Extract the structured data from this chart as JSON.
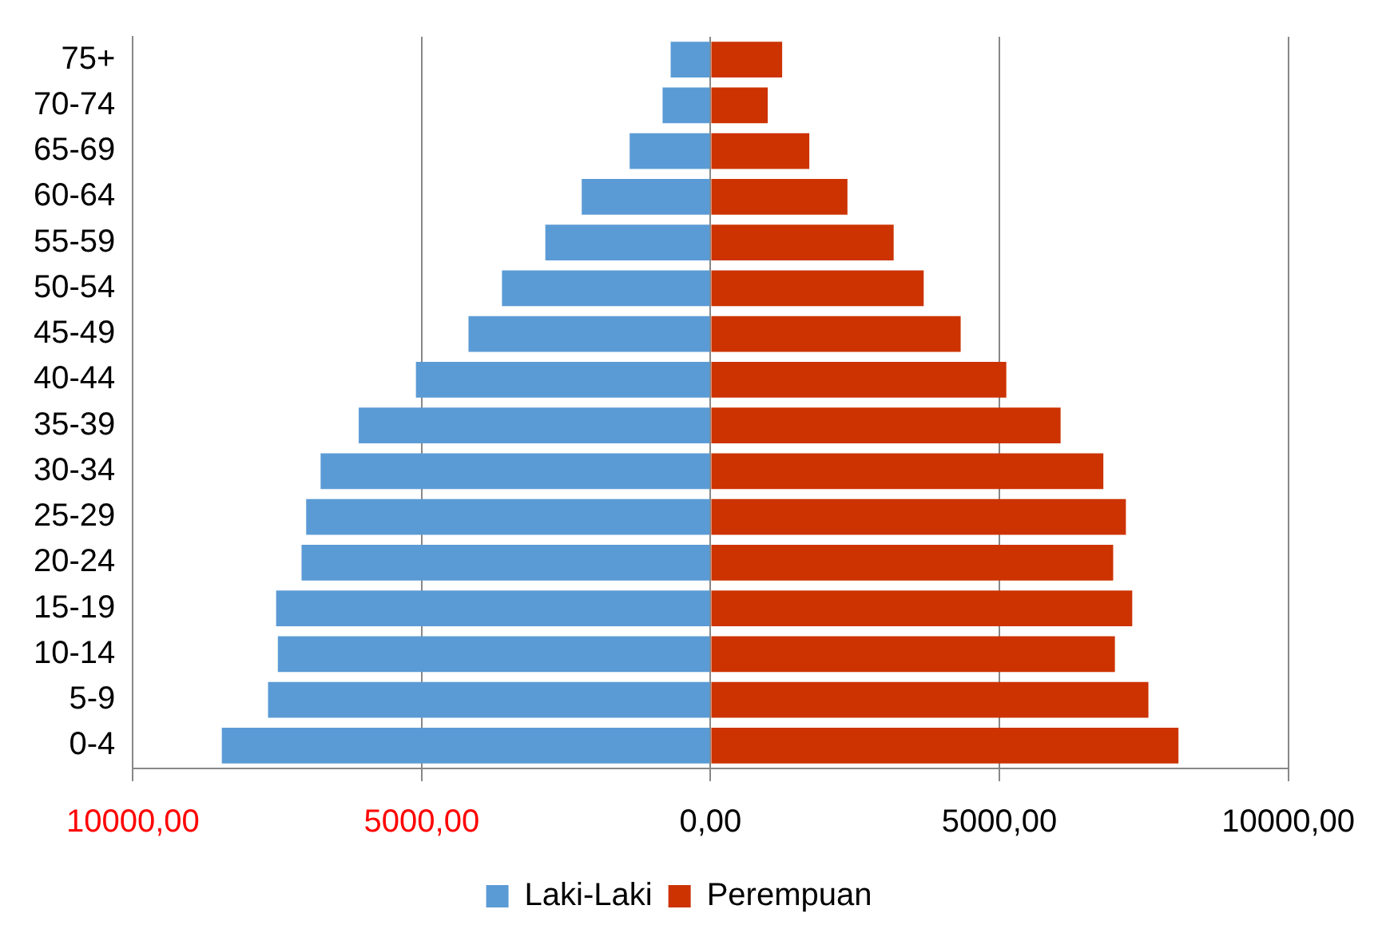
{
  "chart_data": {
    "type": "bar",
    "orientation": "horizontal",
    "stacked": true,
    "categories": [
      "75+",
      "70-74",
      "65-69",
      "60-64",
      "55-59",
      "50-54",
      "45-49",
      "40-44",
      "35-39",
      "30-34",
      "25-29",
      "20-24",
      "15-19",
      "10-14",
      "5-9",
      "0-4"
    ],
    "series": [
      {
        "name": "Laki-Laki",
        "color": "#5b9bd5",
        "values": [
          -690,
          -830,
          -1400,
          -2230,
          -2860,
          -3610,
          -4190,
          -5100,
          -6090,
          -6750,
          -7000,
          -7080,
          -7520,
          -7490,
          -7660,
          -8460
        ]
      },
      {
        "name": "Perempuan",
        "color": "#cc3300",
        "values": [
          1240,
          990,
          1710,
          2370,
          3170,
          3690,
          4330,
          5120,
          6060,
          6800,
          7190,
          6970,
          7300,
          7000,
          7580,
          8100
        ]
      }
    ],
    "xlim": [
      -10000,
      10000
    ],
    "xticks": [
      {
        "value": -10000,
        "label": "10000,00"
      },
      {
        "value": -5000,
        "label": "5000,00"
      },
      {
        "value": 0,
        "label": "0,00"
      },
      {
        "value": 5000,
        "label": "5000,00"
      },
      {
        "value": 10000,
        "label": "10000,00"
      }
    ],
    "grid": "x",
    "legend": "bottom"
  }
}
